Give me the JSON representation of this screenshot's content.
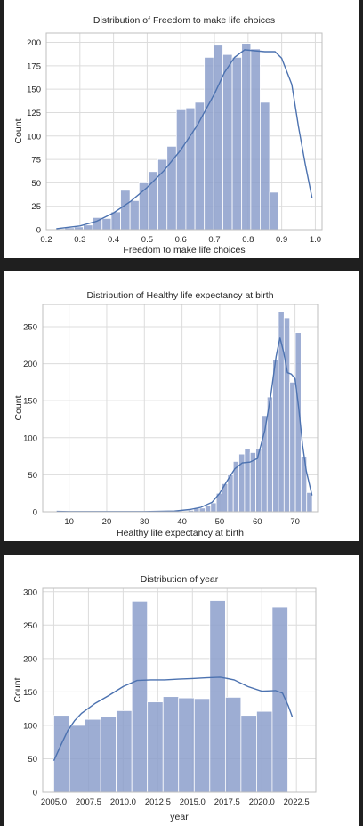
{
  "chart_data": [
    {
      "type": "bar",
      "title": "Distribution of Freedom to make life choices",
      "xlabel": "Freedom to make life choices",
      "ylabel": "Count",
      "xlim": [
        0.2,
        1.02
      ],
      "ylim": [
        0,
        210
      ],
      "xticks": [
        "0.2",
        "0.3",
        "0.4",
        "0.5",
        "0.6",
        "0.7",
        "0.8",
        "0.9",
        "1.0"
      ],
      "yticks": [
        "0",
        "25",
        "50",
        "75",
        "100",
        "125",
        "150",
        "175",
        "200"
      ],
      "grid": true,
      "bar_color": "#8c9fcb",
      "kde_color": "#4c72b0",
      "bins": [
        [
          0.228,
          0.255,
          1
        ],
        [
          0.255,
          0.283,
          2
        ],
        [
          0.283,
          0.31,
          3
        ],
        [
          0.31,
          0.338,
          5
        ],
        [
          0.338,
          0.366,
          13
        ],
        [
          0.366,
          0.393,
          12
        ],
        [
          0.393,
          0.421,
          19
        ],
        [
          0.421,
          0.449,
          42
        ],
        [
          0.449,
          0.476,
          31
        ],
        [
          0.476,
          0.504,
          50
        ],
        [
          0.504,
          0.532,
          62
        ],
        [
          0.532,
          0.559,
          75
        ],
        [
          0.559,
          0.587,
          89
        ],
        [
          0.587,
          0.615,
          128
        ],
        [
          0.615,
          0.642,
          130
        ],
        [
          0.642,
          0.67,
          136
        ],
        [
          0.67,
          0.698,
          184
        ],
        [
          0.698,
          0.725,
          197
        ],
        [
          0.725,
          0.753,
          187
        ],
        [
          0.753,
          0.781,
          184
        ],
        [
          0.781,
          0.808,
          199
        ],
        [
          0.808,
          0.836,
          193
        ],
        [
          0.836,
          0.864,
          136
        ],
        [
          0.864,
          0.891,
          40
        ]
      ],
      "kde": [
        [
          0.23,
          1
        ],
        [
          0.3,
          4
        ],
        [
          0.35,
          9
        ],
        [
          0.4,
          18
        ],
        [
          0.45,
          30
        ],
        [
          0.5,
          45
        ],
        [
          0.55,
          63
        ],
        [
          0.6,
          85
        ],
        [
          0.65,
          112
        ],
        [
          0.7,
          145
        ],
        [
          0.73,
          168
        ],
        [
          0.76,
          184
        ],
        [
          0.79,
          192
        ],
        [
          0.82,
          191
        ],
        [
          0.85,
          190
        ],
        [
          0.88,
          190
        ],
        [
          0.9,
          183
        ],
        [
          0.93,
          155
        ],
        [
          0.95,
          110
        ],
        [
          0.97,
          70
        ],
        [
          0.99,
          34
        ]
      ]
    },
    {
      "type": "bar",
      "title": "Distribution of Healthy life expectancy at birth",
      "xlabel": "Healthy life expectancy at birth",
      "ylabel": "Count",
      "xlim": [
        3,
        76
      ],
      "ylim": [
        0,
        280
      ],
      "xticks": [
        "10",
        "20",
        "30",
        "40",
        "50",
        "60",
        "70"
      ],
      "yticks": [
        "0",
        "50",
        "100",
        "150",
        "200",
        "250"
      ],
      "grid": true,
      "bar_color": "#8c9fcb",
      "kde_color": "#4c72b0",
      "bins": [
        [
          6.7,
          8.2,
          1
        ],
        [
          41.6,
          43.1,
          2
        ],
        [
          43.1,
          44.6,
          5
        ],
        [
          44.6,
          46.1,
          5
        ],
        [
          46.1,
          47.6,
          8
        ],
        [
          47.6,
          49.1,
          12
        ],
        [
          49.1,
          50.6,
          25
        ],
        [
          50.6,
          52.1,
          38
        ],
        [
          52.1,
          53.6,
          50
        ],
        [
          53.6,
          55.1,
          68
        ],
        [
          55.1,
          56.6,
          78
        ],
        [
          56.6,
          58.1,
          85
        ],
        [
          58.1,
          59.6,
          80
        ],
        [
          59.6,
          61.1,
          85
        ],
        [
          61.1,
          62.6,
          130
        ],
        [
          62.6,
          64.1,
          155
        ],
        [
          64.1,
          65.6,
          205
        ],
        [
          65.6,
          67.1,
          270
        ],
        [
          67.1,
          68.6,
          262
        ],
        [
          68.6,
          70.1,
          175
        ],
        [
          70.1,
          71.6,
          242
        ],
        [
          71.6,
          73.1,
          75
        ],
        [
          73.1,
          74.6,
          26
        ]
      ],
      "kde": [
        [
          6.7,
          0.5
        ],
        [
          10,
          0.3
        ],
        [
          20,
          0.2
        ],
        [
          30,
          0.3
        ],
        [
          38,
          1
        ],
        [
          42,
          3
        ],
        [
          45,
          6
        ],
        [
          48,
          13
        ],
        [
          50,
          25
        ],
        [
          52,
          42
        ],
        [
          54,
          58
        ],
        [
          56,
          66
        ],
        [
          58,
          67
        ],
        [
          60,
          72
        ],
        [
          62,
          110
        ],
        [
          63.5,
          155
        ],
        [
          65,
          210
        ],
        [
          66,
          235
        ],
        [
          67,
          215
        ],
        [
          68,
          188
        ],
        [
          69,
          186
        ],
        [
          70,
          180
        ],
        [
          71,
          140
        ],
        [
          72,
          90
        ],
        [
          73,
          55
        ],
        [
          74.5,
          22
        ]
      ]
    },
    {
      "type": "bar",
      "title": "Distribution of year",
      "xlabel": "year",
      "ylabel": "Count",
      "xlim": [
        2004.2,
        2023.9
      ],
      "ylim": [
        0,
        305
      ],
      "xticks": [
        "2005.0",
        "2007.5",
        "2010.0",
        "2012.5",
        "2015.0",
        "2017.5",
        "2020.0",
        "2022.5"
      ],
      "yticks": [
        "0",
        "50",
        "100",
        "150",
        "200",
        "250",
        "300"
      ],
      "grid": true,
      "bar_color": "#8c9fcb",
      "kde_color": "#4c72b0",
      "bins": [
        [
          2005.0,
          2006.13,
          115
        ],
        [
          2006.13,
          2007.25,
          100
        ],
        [
          2007.25,
          2008.38,
          109
        ],
        [
          2008.38,
          2009.5,
          113
        ],
        [
          2009.5,
          2010.63,
          122
        ],
        [
          2010.63,
          2011.75,
          286
        ],
        [
          2011.75,
          2012.88,
          135
        ],
        [
          2012.88,
          2014.0,
          143
        ],
        [
          2014.0,
          2015.13,
          141
        ],
        [
          2015.13,
          2016.25,
          140
        ],
        [
          2016.25,
          2017.38,
          287
        ],
        [
          2017.38,
          2018.5,
          142
        ],
        [
          2018.5,
          2019.63,
          115
        ],
        [
          2019.63,
          2020.75,
          121
        ],
        [
          2020.75,
          2021.88,
          277
        ]
      ],
      "kde": [
        [
          2005.0,
          47
        ],
        [
          2005.5,
          70
        ],
        [
          2006.0,
          92
        ],
        [
          2006.5,
          107
        ],
        [
          2007.0,
          118
        ],
        [
          2008.0,
          133
        ],
        [
          2009.0,
          145
        ],
        [
          2010.0,
          158
        ],
        [
          2011.0,
          167
        ],
        [
          2012.0,
          168
        ],
        [
          2013.0,
          168
        ],
        [
          2014.0,
          169
        ],
        [
          2015.0,
          170
        ],
        [
          2016.0,
          171
        ],
        [
          2017.0,
          172
        ],
        [
          2018.0,
          168
        ],
        [
          2019.0,
          158
        ],
        [
          2020.0,
          151
        ],
        [
          2021.0,
          152
        ],
        [
          2021.5,
          148
        ],
        [
          2021.9,
          130
        ],
        [
          2022.2,
          113
        ]
      ]
    }
  ]
}
